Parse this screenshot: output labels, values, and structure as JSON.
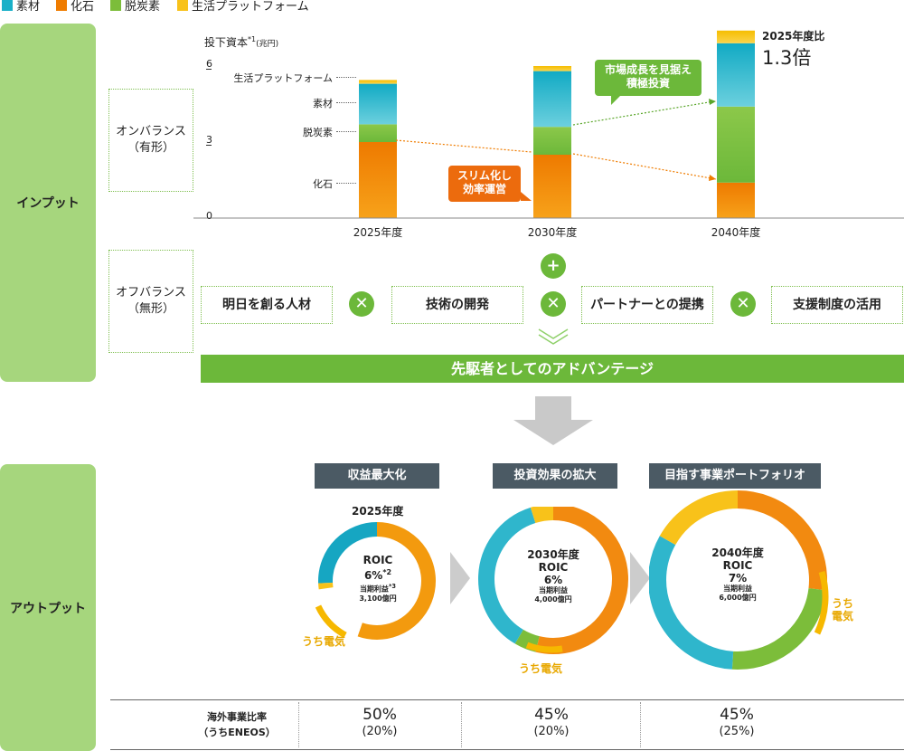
{
  "legend": [
    {
      "label": "素材",
      "color": "#1ab0c8"
    },
    {
      "label": "化石",
      "color": "#ef7c00"
    },
    {
      "label": "脱炭素",
      "color": "#7cbd3a"
    },
    {
      "label": "生活プラットフォーム",
      "color": "#f8c21a"
    }
  ],
  "sections": {
    "input": "インプット",
    "output": "アウトプット"
  },
  "boxes": {
    "on_balance": "オンバランス\n（有形）",
    "off_balance": "オフバランス\n（無形）"
  },
  "factors": [
    "明日を創る人材",
    "技術の開発",
    "パートナーとの提携",
    "支援制度の活用"
  ],
  "operator_times": "✕",
  "operator_plus": "+",
  "banner": "先駆者としてのアドバンテージ",
  "chart_data": {
    "type": "bar",
    "ylabel": "投下資本",
    "ylabel_note": "*1",
    "ylabel_unit": "(兆円)",
    "yticks": [
      "0",
      "3",
      "6"
    ],
    "ylim": [
      0,
      6
    ],
    "categories": [
      "2025年度",
      "2030年度",
      "2040年度"
    ],
    "stack_labels": [
      "生活プラットフォーム",
      "素材",
      "脱炭素",
      "化石"
    ],
    "series": [
      {
        "name": "化石",
        "values": [
          3.0,
          2.5,
          1.4
        ]
      },
      {
        "name": "脱炭素",
        "values": [
          0.7,
          1.1,
          3.0
        ]
      },
      {
        "name": "素材",
        "values": [
          1.6,
          2.2,
          2.5
        ]
      },
      {
        "name": "生活プラットフォーム",
        "values": [
          0.15,
          0.2,
          0.5
        ]
      }
    ],
    "annotation_ratio_label": "2025年度比",
    "annotation_ratio_value": "1.3倍",
    "callout_growth": "市場成長を見据え\n積極投資",
    "callout_slim": "スリム化し\n効率運営"
  },
  "output": {
    "heads": [
      "収益最大化",
      "投資効果の拡大",
      "目指す事業ポートフォリオ"
    ],
    "donuts": [
      {
        "year": "2025年度",
        "roic_label": "ROIC",
        "roic": "6%",
        "roic_note": "*2",
        "profit_label": "当期利益",
        "profit_note": "*3",
        "profit": "3,100億円",
        "electric": "うち電気"
      },
      {
        "year": "2030年度",
        "roic_label": "ROIC",
        "roic": "6%",
        "roic_note": "",
        "profit_label": "当期利益",
        "profit_note": "",
        "profit": "4,000億円",
        "electric": "うち電気"
      },
      {
        "year": "2040年度",
        "roic_label": "ROIC",
        "roic": "7%",
        "roic_note": "",
        "profit_label": "当期利益",
        "profit_note": "",
        "profit": "6,000億円",
        "electric": "うち\n電気"
      }
    ],
    "overseas": {
      "label": "海外事業比率\n（うちENEOS）",
      "values": [
        {
          "pct": "50%",
          "sub": "(20%)"
        },
        {
          "pct": "45%",
          "sub": "(20%)"
        },
        {
          "pct": "45%",
          "sub": "(25%)"
        }
      ]
    }
  }
}
